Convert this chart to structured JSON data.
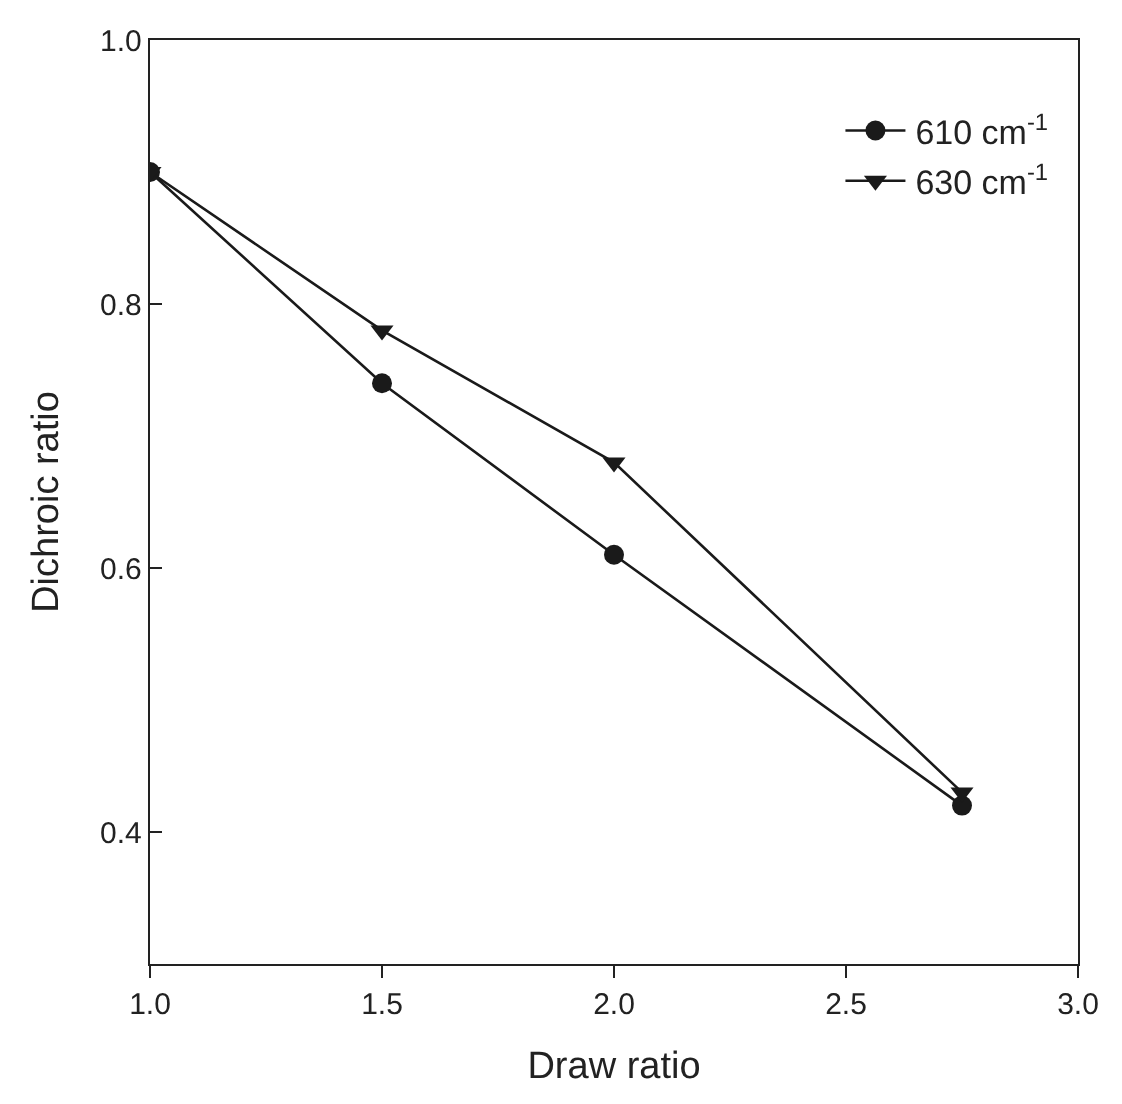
{
  "chart_data": {
    "type": "line",
    "xlabel": "Draw ratio",
    "ylabel": "Dichroic ratio",
    "x": [
      1.0,
      1.5,
      2.0,
      2.75
    ],
    "series": [
      {
        "name": "610 cm$^{-1}$",
        "color": "#1a1a1a",
        "marker": "circle",
        "values": [
          0.9,
          0.74,
          0.61,
          0.42
        ]
      },
      {
        "name": "630 cm$^{-1}$",
        "color": "#1a1a1a",
        "marker": "triangle",
        "values": [
          0.9,
          0.78,
          0.68,
          0.43
        ]
      }
    ],
    "xlim": [
      1.0,
      3.0
    ],
    "xticks": [
      {
        "value": 1.0,
        "label": "1.0"
      },
      {
        "value": 1.5,
        "label": "1.5"
      },
      {
        "value": 2.0,
        "label": "2.0"
      },
      {
        "value": 2.5,
        "label": "2.5"
      },
      {
        "value": 3.0,
        "label": "3.0"
      }
    ],
    "ylim": [
      0.3,
      1.0
    ],
    "yticks": [
      {
        "value": 0.4,
        "label": "0.4"
      },
      {
        "value": 0.6,
        "label": "0.6"
      },
      {
        "value": 0.8,
        "label": "0.8"
      },
      {
        "value": 1.0,
        "label": "1.0"
      }
    ],
    "legend": "top right",
    "line_style": "solid"
  }
}
